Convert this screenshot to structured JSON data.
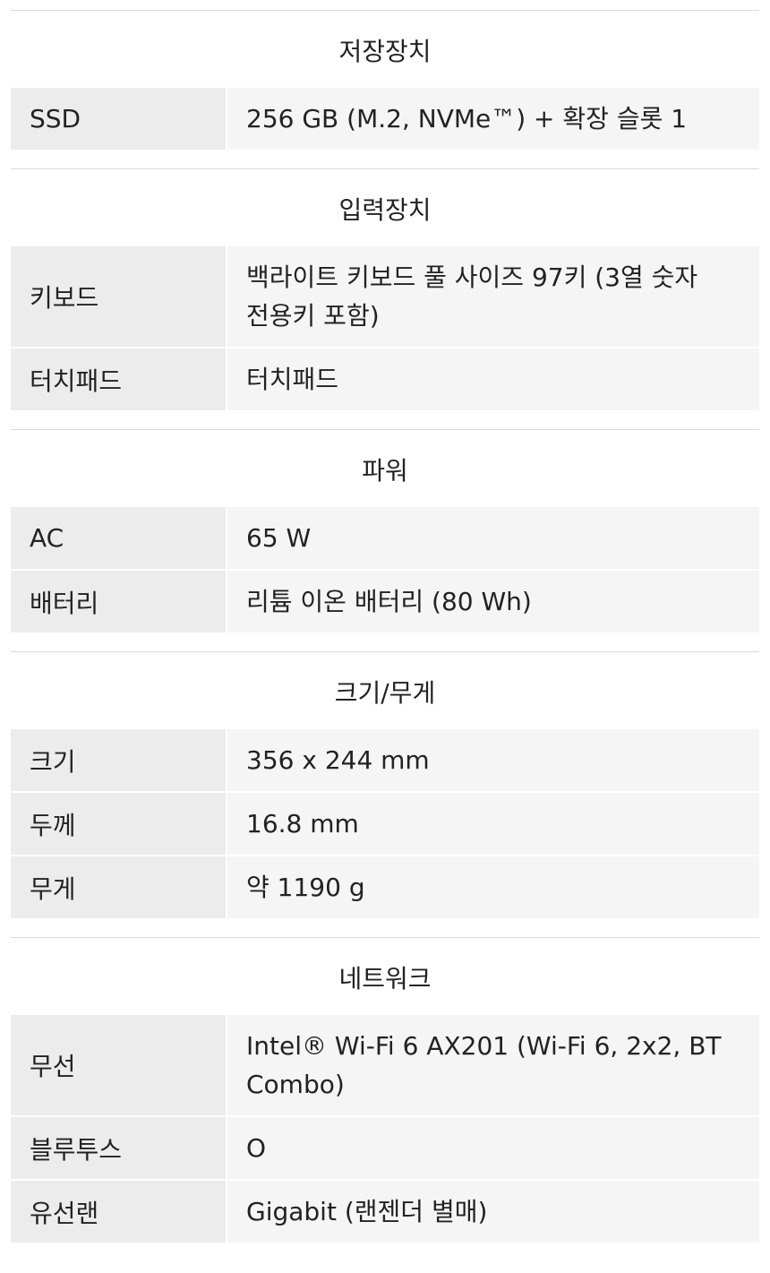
{
  "sections": [
    {
      "title": "저장장치",
      "rows": [
        {
          "label": "SSD",
          "value": "256 GB (M.2, NVMe™) + 확장 슬롯 1"
        }
      ]
    },
    {
      "title": "입력장치",
      "rows": [
        {
          "label": "키보드",
          "value": "백라이트 키보드 풀 사이즈 97키 (3열 숫자 전용키 포함)"
        },
        {
          "label": "터치패드",
          "value": "터치패드"
        }
      ]
    },
    {
      "title": "파워",
      "rows": [
        {
          "label": "AC",
          "value": "65 W"
        },
        {
          "label": "배터리",
          "value": "리튬 이온 배터리 (80 Wh)"
        }
      ]
    },
    {
      "title": "크기/무게",
      "rows": [
        {
          "label": "크기",
          "value": "356 x 244 mm"
        },
        {
          "label": "두께",
          "value": "16.8 mm"
        },
        {
          "label": "무게",
          "value": "약 1190 g"
        }
      ]
    },
    {
      "title": "네트워크",
      "rows": [
        {
          "label": "무선",
          "value": "Intel® Wi-Fi 6 AX201 (Wi-Fi 6, 2x2, BT Combo)"
        },
        {
          "label": "블루투스",
          "value": "O"
        },
        {
          "label": "유선랜",
          "value": "Gigabit (랜젠더 별매)"
        }
      ]
    }
  ]
}
